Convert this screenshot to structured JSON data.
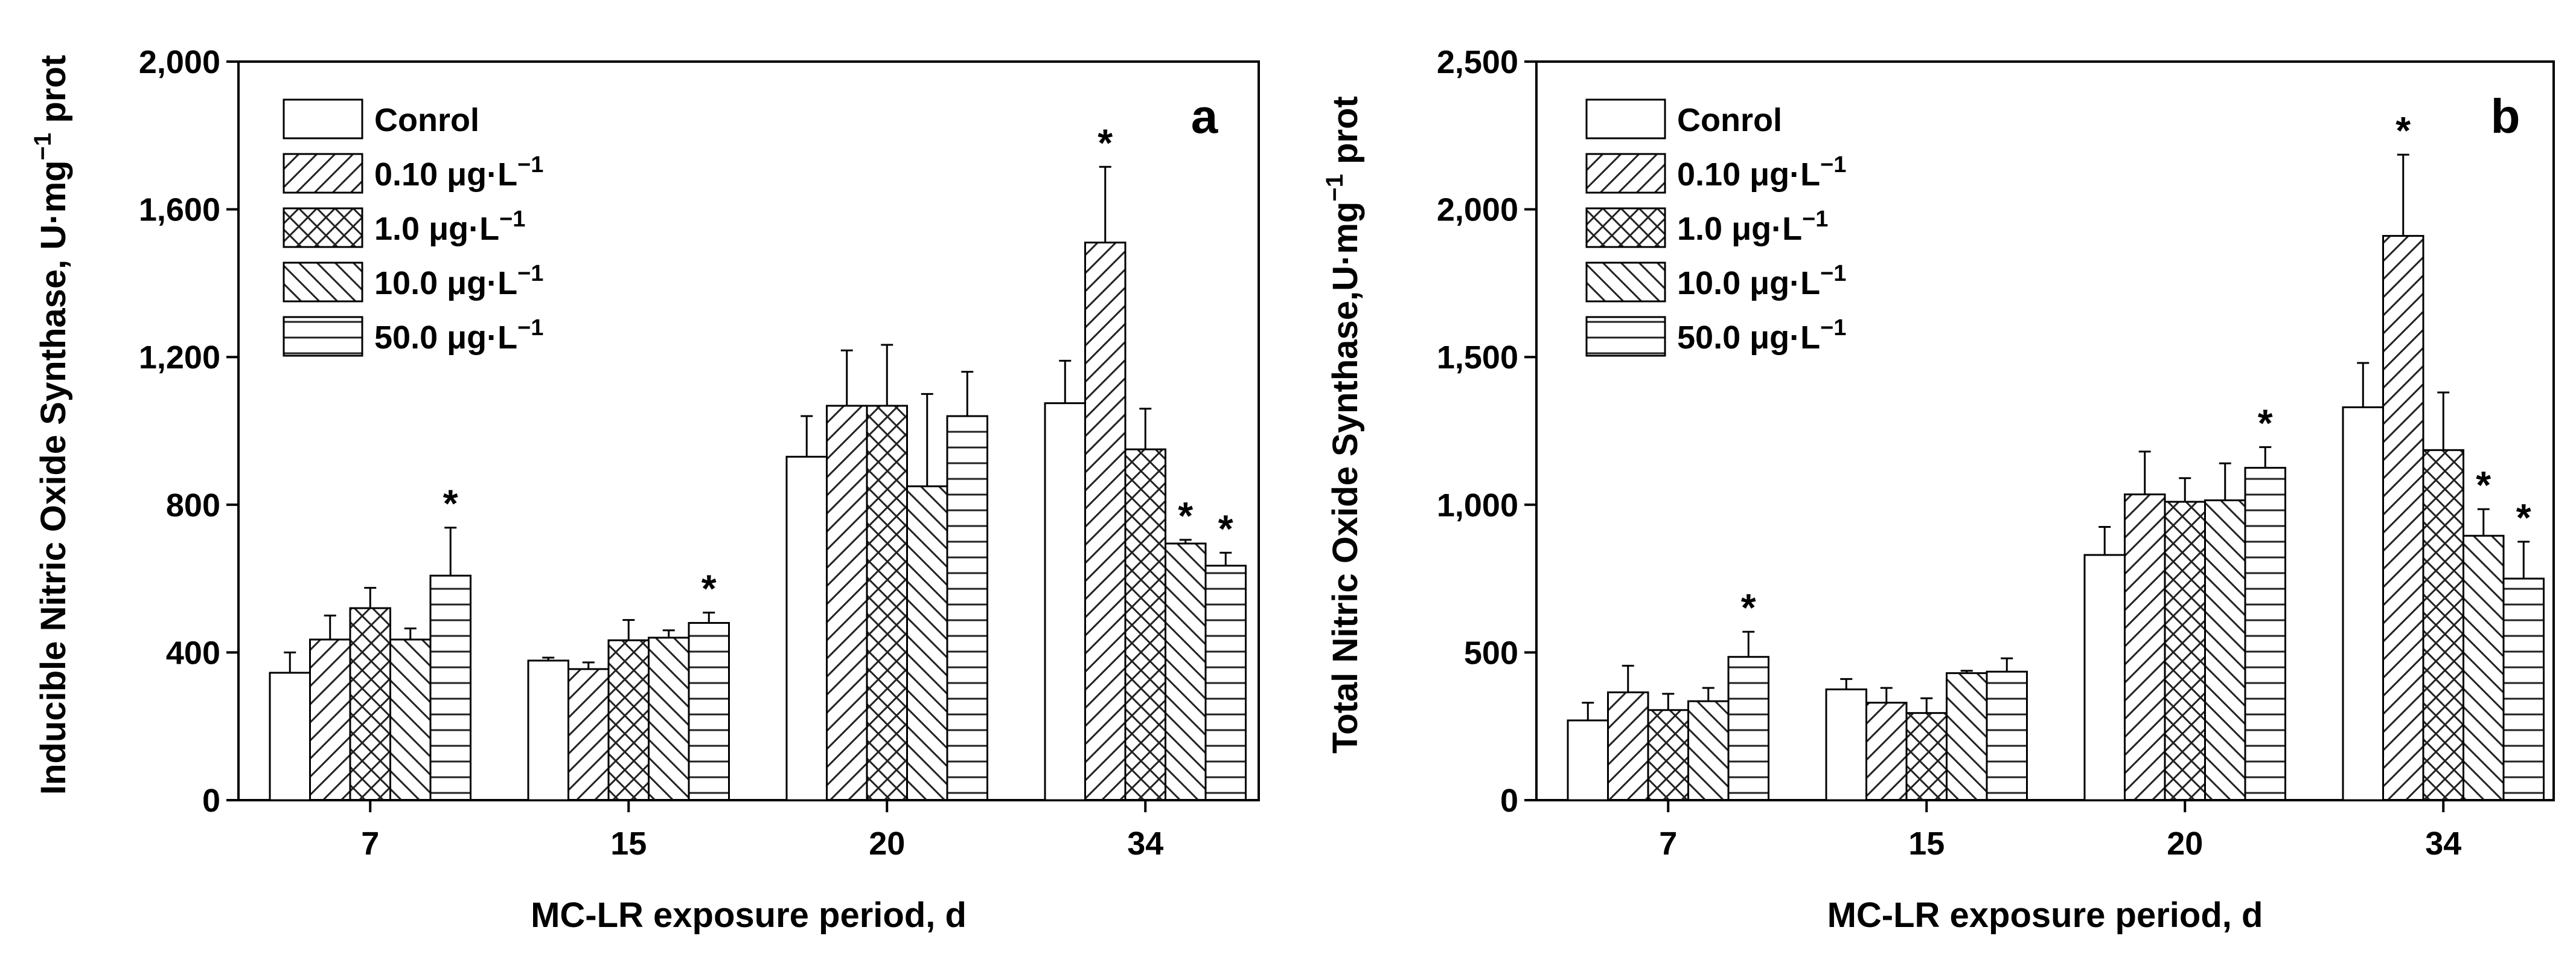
{
  "chart_data": [
    {
      "type": "bar",
      "panel_label": "a",
      "xlabel": "MC-LR exposure period, d",
      "ylabel": "Inducible Nitric Oxide Synthase, U·mg",
      "ylabel_exponent": "−1",
      "ylabel_suffix": " prot",
      "ylim": [
        0,
        2000
      ],
      "yticks": [
        0,
        400,
        800,
        1200,
        1600,
        2000
      ],
      "ytick_labels": [
        "0",
        "400",
        "800",
        "1,200",
        "1,600",
        "2,000"
      ],
      "categories": [
        "7",
        "15",
        "20",
        "34"
      ],
      "legend_position": "top-left",
      "series": [
        {
          "name": "Conrol",
          "pattern": "none",
          "values": [
            345,
            378,
            930,
            1075
          ],
          "errors": [
            55,
            8,
            110,
            115
          ],
          "significant": [
            false,
            false,
            false,
            false
          ]
        },
        {
          "name": "0.10 μg·L",
          "pattern": "forward",
          "values": [
            435,
            355,
            1068,
            1510
          ],
          "errors": [
            65,
            18,
            150,
            205
          ],
          "significant": [
            false,
            false,
            false,
            true
          ]
        },
        {
          "name": "1.0   μg·L",
          "pattern": "cross",
          "values": [
            520,
            433,
            1068,
            950
          ],
          "errors": [
            55,
            55,
            165,
            110
          ],
          "significant": [
            false,
            false,
            false,
            false
          ]
        },
        {
          "name": "10.0 μg·L",
          "pattern": "back",
          "values": [
            435,
            440,
            850,
            695
          ],
          "errors": [
            30,
            20,
            250,
            10
          ],
          "significant": [
            false,
            false,
            false,
            true
          ]
        },
        {
          "name": "50.0 μg·L",
          "pattern": "horizontal",
          "values": [
            608,
            480,
            1040,
            635
          ],
          "errors": [
            130,
            28,
            120,
            35
          ],
          "significant": [
            true,
            true,
            false,
            true
          ]
        }
      ],
      "legend_exponent": "−1",
      "significance_marker": "*"
    },
    {
      "type": "bar",
      "panel_label": "b",
      "xlabel": "MC-LR exposure period, d",
      "ylabel": "Total Nitric Oxide Synthase,U·mg",
      "ylabel_exponent": "−1",
      "ylabel_suffix": " prot",
      "ylim": [
        0,
        2500
      ],
      "yticks": [
        0,
        500,
        1000,
        1500,
        2000,
        2500
      ],
      "ytick_labels": [
        "0",
        "500",
        "1,000",
        "1,500",
        "2,000",
        "2,500"
      ],
      "categories": [
        "7",
        "15",
        "20",
        "34"
      ],
      "legend_position": "top-left",
      "series": [
        {
          "name": "Conrol",
          "pattern": "none",
          "values": [
            270,
            375,
            830,
            1330
          ],
          "errors": [
            60,
            35,
            95,
            150
          ],
          "significant": [
            false,
            false,
            false,
            false
          ]
        },
        {
          "name": "0.10 μg·L",
          "pattern": "forward",
          "values": [
            365,
            330,
            1035,
            1910
          ],
          "errors": [
            90,
            50,
            145,
            275
          ],
          "significant": [
            false,
            false,
            false,
            true
          ]
        },
        {
          "name": "1.0   μg·L",
          "pattern": "cross",
          "values": [
            305,
            295,
            1010,
            1185
          ],
          "errors": [
            55,
            50,
            80,
            195
          ],
          "significant": [
            false,
            false,
            false,
            false
          ]
        },
        {
          "name": "10.0 μg·L",
          "pattern": "back",
          "values": [
            335,
            430,
            1015,
            895
          ],
          "errors": [
            45,
            8,
            125,
            90
          ],
          "significant": [
            false,
            false,
            false,
            true
          ]
        },
        {
          "name": "50.0 μg·L",
          "pattern": "horizontal",
          "values": [
            485,
            435,
            1125,
            750
          ],
          "errors": [
            85,
            45,
            70,
            125
          ],
          "significant": [
            true,
            false,
            true,
            true
          ]
        }
      ],
      "legend_exponent": "−1",
      "significance_marker": "*"
    }
  ]
}
